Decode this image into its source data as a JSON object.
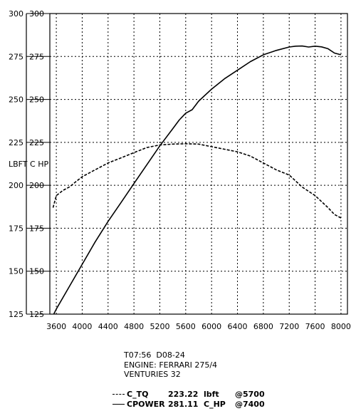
{
  "chart_data": {
    "type": "line",
    "ylabel": "LBFT C HP",
    "xlim": [
      3500,
      8100
    ],
    "ylim": [
      125,
      300
    ],
    "x_ticks": [
      3600,
      4000,
      4400,
      4800,
      5200,
      5600,
      6000,
      6400,
      6800,
      7200,
      7600,
      8000
    ],
    "y_ticks": [
      125,
      150,
      175,
      200,
      225,
      250,
      275,
      300
    ],
    "grid": true,
    "series": [
      {
        "name": "C_TQ",
        "style": "dashed",
        "x": [
          3550,
          3600,
          3700,
          3800,
          3900,
          4000,
          4200,
          4400,
          4600,
          4800,
          5000,
          5200,
          5400,
          5600,
          5800,
          6000,
          6200,
          6400,
          6600,
          6800,
          7000,
          7200,
          7400,
          7600,
          7800,
          7900,
          8000
        ],
        "y": [
          187,
          194,
          197,
          199,
          202,
          205,
          209,
          213,
          216,
          219,
          222,
          223.5,
          224,
          224.2,
          224,
          222.5,
          221,
          219.5,
          217,
          213,
          209,
          206,
          199,
          194,
          187,
          183,
          181
        ]
      },
      {
        "name": "CPOWER",
        "style": "solid",
        "x": [
          3560,
          3600,
          3800,
          4000,
          4200,
          4400,
          4600,
          4800,
          5000,
          5200,
          5400,
          5500,
          5600,
          5700,
          5800,
          6000,
          6200,
          6400,
          6600,
          6800,
          7000,
          7200,
          7300,
          7400,
          7500,
          7600,
          7700,
          7800,
          7900,
          8000
        ],
        "y": [
          125,
          128,
          141,
          154,
          167,
          179,
          190,
          201,
          212,
          223,
          233,
          238,
          242,
          244,
          249,
          256,
          262,
          267,
          272,
          276,
          278.5,
          280.5,
          281,
          281.1,
          280.5,
          281,
          280.6,
          279.5,
          277,
          276
        ]
      }
    ]
  },
  "info": {
    "line1": "T07:56  D08-24",
    "line2": "ENGINE: FERRARI 275/4",
    "line3": "VENTURIES 32"
  },
  "legend": [
    {
      "name": "C_TQ",
      "value": "223.22",
      "unit": "lbft",
      "at": "@5700",
      "style": "dashed"
    },
    {
      "name": "CPOWER",
      "value": "281.11",
      "unit": "C_HP",
      "at": "@7400",
      "style": "solid"
    }
  ]
}
